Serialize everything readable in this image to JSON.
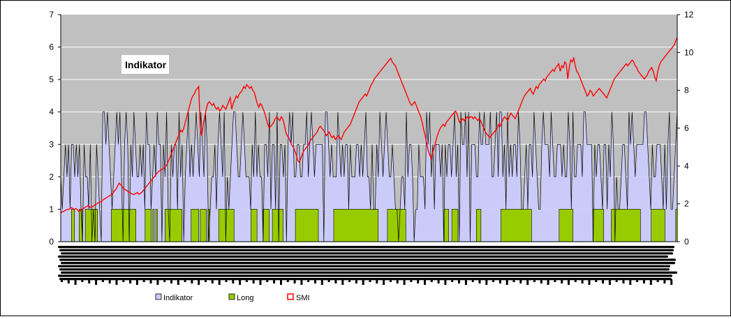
{
  "chart_data": {
    "type": "area",
    "title": "Indikator",
    "left_axis": {
      "range": [
        0,
        7
      ],
      "ticks": [
        "0",
        "1",
        "2",
        "3",
        "4",
        "5",
        "6",
        "7"
      ]
    },
    "right_axis": {
      "range": [
        0,
        12
      ],
      "ticks": [
        "0",
        "2",
        "4",
        "6",
        "8",
        "10",
        "12"
      ]
    },
    "plot_background": "#c0c0c0",
    "grid": true,
    "legend_position": "bottom",
    "x_tick_labels_legible": false,
    "series": [
      {
        "name": "Indikator",
        "axis": "left",
        "style": "area",
        "color": "#ccccff",
        "values": [
          2,
          1,
          2,
          3,
          2,
          3,
          1,
          3,
          3,
          2,
          3,
          2,
          3,
          1,
          0,
          3,
          2,
          2,
          1,
          3,
          0,
          1,
          0,
          3,
          2,
          1,
          0,
          4,
          4,
          3,
          4,
          3,
          2,
          1,
          2,
          3,
          4,
          3,
          4,
          2,
          0,
          3,
          4,
          3,
          0,
          3,
          2,
          4,
          3,
          2,
          2,
          3,
          2,
          3,
          1,
          4,
          3,
          3,
          1,
          2,
          3,
          2,
          4,
          3,
          3,
          0,
          3,
          2,
          4,
          1,
          0,
          3,
          2,
          3,
          3,
          1,
          4,
          2,
          3,
          0,
          2,
          3,
          4,
          2,
          3,
          2,
          3,
          4,
          3,
          2,
          4,
          3,
          2,
          4,
          3,
          0,
          1,
          2,
          2,
          3,
          1,
          3,
          4,
          3,
          2,
          4,
          0,
          2,
          1,
          2,
          3,
          4,
          4,
          3,
          2,
          2,
          3,
          4,
          3,
          2,
          2,
          2,
          1,
          3,
          2,
          4,
          2,
          3,
          2,
          2,
          0,
          3,
          3,
          2,
          4,
          1,
          3,
          3,
          1,
          4,
          0,
          3,
          3,
          2,
          3,
          0,
          3,
          4,
          3,
          4,
          2,
          2,
          3,
          3,
          2,
          2,
          3,
          3,
          4,
          2,
          3,
          4,
          3,
          2,
          3,
          3,
          3,
          3,
          3,
          0,
          4,
          4,
          3,
          2,
          3,
          2,
          2,
          2,
          4,
          3,
          2,
          3,
          2,
          3,
          3,
          1,
          3,
          2,
          2,
          2,
          3,
          3,
          2,
          3,
          2,
          3,
          4,
          2,
          2,
          1,
          3,
          1,
          1,
          3,
          2,
          4,
          3,
          2,
          3,
          4,
          3,
          2,
          2,
          3,
          2,
          1,
          1,
          0,
          1,
          2,
          2,
          1,
          4,
          2,
          3,
          3,
          2,
          0,
          1,
          1,
          3,
          2,
          2,
          2,
          1,
          4,
          3,
          4,
          2,
          3,
          1,
          3,
          3,
          3,
          2,
          3,
          0,
          3,
          2,
          3,
          3,
          2,
          3,
          4,
          2,
          3,
          0,
          4,
          3,
          3,
          4,
          2,
          4,
          0,
          3,
          3,
          3,
          2,
          2,
          4,
          3,
          3,
          4,
          3,
          3,
          3,
          4,
          2,
          2,
          3,
          4,
          2,
          4,
          4,
          2,
          3,
          1,
          4,
          2,
          3,
          2,
          3,
          3,
          2,
          4,
          3,
          1,
          1,
          2,
          3,
          1,
          3,
          3,
          2,
          4,
          3,
          2,
          1,
          1,
          3,
          4,
          3,
          3,
          3,
          2,
          4,
          3,
          2,
          2,
          3,
          3,
          3,
          2,
          3,
          2,
          2,
          4,
          3,
          1,
          4,
          2,
          2,
          3,
          3,
          3,
          2,
          4,
          4,
          3,
          3,
          3,
          3,
          0,
          3,
          2,
          3,
          3,
          2,
          1,
          3,
          3,
          1,
          3,
          2,
          4,
          3,
          0,
          2,
          1,
          1,
          2,
          3,
          3,
          2,
          1,
          4,
          3,
          4,
          3,
          2,
          3,
          3,
          3,
          3,
          3,
          4,
          4,
          3,
          2,
          1,
          3,
          2,
          2,
          3,
          3,
          3,
          2,
          1,
          3,
          1,
          3,
          4,
          1,
          1,
          2,
          3,
          4
        ]
      },
      {
        "name": "Long",
        "axis": "left",
        "style": "area",
        "color": "#99cc00",
        "values": [
          0,
          0,
          0,
          0,
          0,
          0,
          0,
          1,
          1,
          0,
          0,
          0,
          1,
          1,
          0,
          0,
          1,
          1,
          1,
          1,
          1,
          1,
          1,
          1,
          0,
          0,
          0,
          0,
          0,
          0,
          0,
          0,
          0,
          1,
          1,
          1,
          1,
          1,
          1,
          1,
          1,
          1,
          1,
          1,
          1,
          1,
          1,
          1,
          1,
          0,
          0,
          0,
          0,
          0,
          0,
          1,
          1,
          1,
          1,
          0,
          1,
          0,
          1,
          0,
          0,
          0,
          0,
          0,
          1,
          1,
          1,
          1,
          1,
          1,
          1,
          1,
          1,
          1,
          1,
          0,
          0,
          0,
          0,
          0,
          0,
          1,
          1,
          1,
          1,
          1,
          0,
          1,
          1,
          1,
          1,
          0,
          1,
          0,
          0,
          0,
          0,
          0,
          0,
          1,
          1,
          1,
          1,
          1,
          1,
          1,
          1,
          1,
          1,
          0,
          0,
          0,
          0,
          0,
          0,
          0,
          0,
          0,
          0,
          0,
          1,
          1,
          1,
          1,
          0,
          0,
          0,
          0,
          1,
          1,
          1,
          1,
          0,
          0,
          1,
          1,
          1,
          1,
          1,
          1,
          1,
          0,
          0,
          0,
          0,
          0,
          0,
          0,
          0,
          1,
          1,
          1,
          1,
          1,
          1,
          1,
          1,
          1,
          1,
          1,
          1,
          1,
          1,
          1,
          0,
          0,
          0,
          0,
          0,
          0,
          0,
          0,
          0,
          0,
          1,
          1,
          1,
          1,
          1,
          1,
          1,
          1,
          1,
          1,
          1,
          1,
          1,
          1,
          1,
          1,
          1,
          1,
          1,
          1,
          1,
          1,
          1,
          1,
          1,
          1,
          1,
          1,
          1,
          0,
          0,
          0,
          0,
          0,
          0,
          1,
          1,
          1,
          1,
          1,
          1,
          1,
          1,
          1,
          1,
          1,
          1,
          0,
          0,
          0,
          0,
          0,
          0,
          0,
          0,
          0,
          0,
          0,
          0,
          0,
          0,
          0,
          0,
          0,
          0,
          0,
          0,
          0,
          0,
          0,
          0,
          0,
          1,
          1,
          1,
          0,
          0,
          1,
          1,
          1,
          1,
          0,
          0,
          0,
          0,
          0,
          0,
          0,
          0,
          0,
          0,
          0,
          0,
          1,
          1,
          1,
          0,
          0,
          0,
          0,
          0,
          0,
          0,
          0,
          0,
          0,
          0,
          0,
          0,
          1,
          1,
          1,
          1,
          1,
          1,
          1,
          1,
          1,
          1,
          1,
          1,
          1,
          1,
          1,
          1,
          1,
          1,
          1,
          1,
          0,
          0,
          0,
          0,
          0,
          0,
          0,
          0,
          0,
          0,
          0,
          0,
          0,
          0,
          0,
          0,
          0,
          0,
          1,
          1,
          1,
          1,
          1,
          1,
          1,
          1,
          1,
          0,
          0,
          0,
          0,
          0,
          0,
          0,
          0,
          0,
          0,
          0,
          0,
          0,
          1,
          1,
          1,
          1,
          1,
          1,
          1,
          0,
          0,
          0,
          0,
          0,
          1,
          1,
          1,
          1,
          1,
          1,
          1,
          1,
          1,
          1,
          1,
          1,
          1,
          1,
          1,
          1,
          1,
          1,
          1,
          0,
          0,
          0,
          0,
          0,
          0,
          0,
          1,
          1,
          1,
          1,
          1,
          1,
          1,
          1,
          1,
          0,
          0,
          0,
          0,
          0,
          0,
          0,
          1,
          1
        ]
      },
      {
        "name": "SMI",
        "axis": "right",
        "style": "line",
        "color": "#ff0000",
        "values": [
          1.5,
          1.6,
          1.6,
          1.65,
          1.7,
          1.7,
          1.75,
          1.8,
          1.75,
          1.7,
          1.75,
          1.7,
          1.6,
          1.65,
          1.7,
          1.75,
          1.8,
          1.85,
          1.9,
          1.85,
          1.8,
          1.85,
          1.9,
          1.95,
          2.0,
          2.05,
          2.1,
          2.1,
          2.2,
          2.25,
          2.3,
          2.35,
          2.4,
          2.45,
          2.5,
          2.6,
          2.7,
          2.8,
          2.95,
          3.1,
          3.0,
          2.9,
          2.8,
          2.75,
          2.7,
          2.65,
          2.6,
          2.55,
          2.5,
          2.5,
          2.55,
          2.6,
          2.5,
          2.55,
          2.6,
          2.7,
          2.8,
          2.9,
          3.0,
          3.1,
          3.2,
          3.3,
          3.4,
          3.5,
          3.6,
          3.7,
          3.75,
          3.8,
          3.85,
          3.9,
          4.0,
          4.1,
          4.3,
          4.5,
          4.7,
          4.9,
          5.1,
          5.3,
          5.5,
          5.7,
          5.9,
          5.8,
          6.0,
          6.3,
          6.6,
          6.9,
          7.2,
          7.5,
          7.7,
          7.8,
          8.0,
          8.1,
          8.2,
          6.0,
          5.6,
          6.2,
          6.6,
          7.0,
          7.3,
          7.4,
          7.3,
          7.2,
          7.3,
          7.1,
          7.0,
          7.1,
          6.9,
          7.0,
          7.2,
          7.1,
          7.0,
          7.2,
          7.4,
          7.6,
          7.0,
          7.3,
          7.5,
          7.7,
          7.6,
          7.8,
          7.9,
          8.0,
          8.2,
          8.1,
          8.3,
          8.2,
          8.1,
          8.2,
          8.0,
          7.9,
          7.6,
          7.3,
          7.1,
          7.3,
          7.2,
          7.0,
          6.8,
          6.5,
          6.2,
          6.0,
          6.1,
          6.2,
          6.3,
          6.5,
          6.6,
          6.5,
          6.4,
          6.6,
          6.5,
          6.2,
          5.8,
          5.6,
          5.5,
          5.3,
          5.1,
          5.0,
          4.8,
          4.6,
          4.3,
          4.2,
          4.4,
          4.6,
          4.8,
          4.9,
          5.0,
          5.1,
          5.3,
          5.4,
          5.5,
          5.6,
          5.7,
          5.8,
          6.0,
          6.1,
          6.0,
          5.9,
          5.8,
          5.6,
          5.7,
          5.8,
          5.6,
          5.5,
          5.6,
          5.4,
          5.5,
          5.6,
          5.5,
          5.4,
          5.6,
          5.8,
          5.9,
          6.0,
          6.1,
          6.2,
          6.4,
          6.6,
          6.8,
          7.0,
          7.2,
          7.4,
          7.5,
          7.6,
          7.7,
          7.8,
          7.7,
          7.9,
          8.1,
          8.3,
          8.4,
          8.6,
          8.7,
          8.8,
          8.9,
          9.0,
          9.1,
          9.2,
          9.3,
          9.4,
          9.5,
          9.6,
          9.7,
          9.5,
          9.4,
          9.3,
          9.1,
          8.9,
          8.7,
          8.5,
          8.3,
          8.1,
          7.9,
          7.7,
          7.5,
          7.3,
          7.2,
          7.3,
          7.4,
          7.2,
          7.0,
          6.8,
          6.6,
          6.3,
          5.9,
          5.6,
          5.2,
          4.8,
          4.6,
          4.4,
          4.7,
          5.0,
          5.3,
          5.6,
          5.8,
          6.0,
          6.1,
          6.2,
          6.1,
          6.3,
          6.4,
          6.5,
          6.6,
          6.7,
          6.8,
          6.9,
          6.8,
          6.5,
          6.3,
          6.4,
          6.5,
          6.4,
          6.5,
          6.6,
          6.5,
          6.6,
          6.6,
          6.5,
          6.6,
          6.5,
          6.4,
          6.5,
          6.4,
          6.2,
          6.0,
          5.8,
          5.7,
          5.6,
          5.5,
          5.6,
          5.7,
          5.8,
          5.9,
          6.0,
          6.2,
          6.1,
          6.3,
          6.5,
          6.6,
          6.5,
          6.4,
          6.6,
          6.8,
          6.7,
          6.6,
          6.5,
          6.7,
          6.9,
          7.1,
          7.3,
          7.5,
          7.7,
          7.8,
          7.9,
          8.0,
          8.1,
          7.9,
          7.8,
          8.0,
          8.2,
          8.1,
          8.3,
          8.4,
          8.5,
          8.6,
          8.5,
          8.7,
          8.8,
          8.9,
          9.0,
          9.1,
          9.0,
          9.2,
          9.3,
          9.4,
          9.0,
          9.3,
          9.2,
          9.5,
          9.4,
          8.6,
          9.2,
          9.6,
          9.5,
          9.7,
          9.3,
          9.0,
          8.9,
          8.7,
          8.5,
          8.3,
          8.1,
          7.9,
          7.7,
          7.8,
          8.0,
          7.9,
          7.7,
          7.8,
          7.9,
          8.0,
          8.1,
          8.0,
          7.9,
          7.8,
          7.7,
          7.6,
          7.8,
          8.0,
          8.2,
          8.4,
          8.6,
          8.7,
          8.8,
          8.9,
          9.0,
          9.1,
          9.2,
          9.3,
          9.4,
          9.3,
          9.4,
          9.5,
          9.6,
          9.5,
          9.3,
          9.2,
          9.0,
          8.9,
          8.8,
          8.7,
          8.6,
          8.7,
          8.8,
          9.0,
          9.1,
          9.2,
          9.0,
          8.7,
          8.5,
          9.0,
          9.3,
          9.5,
          9.6,
          9.7,
          9.8,
          9.9,
          10.0,
          10.1,
          10.2,
          10.3,
          10.4,
          10.6,
          10.8
        ]
      }
    ]
  }
}
